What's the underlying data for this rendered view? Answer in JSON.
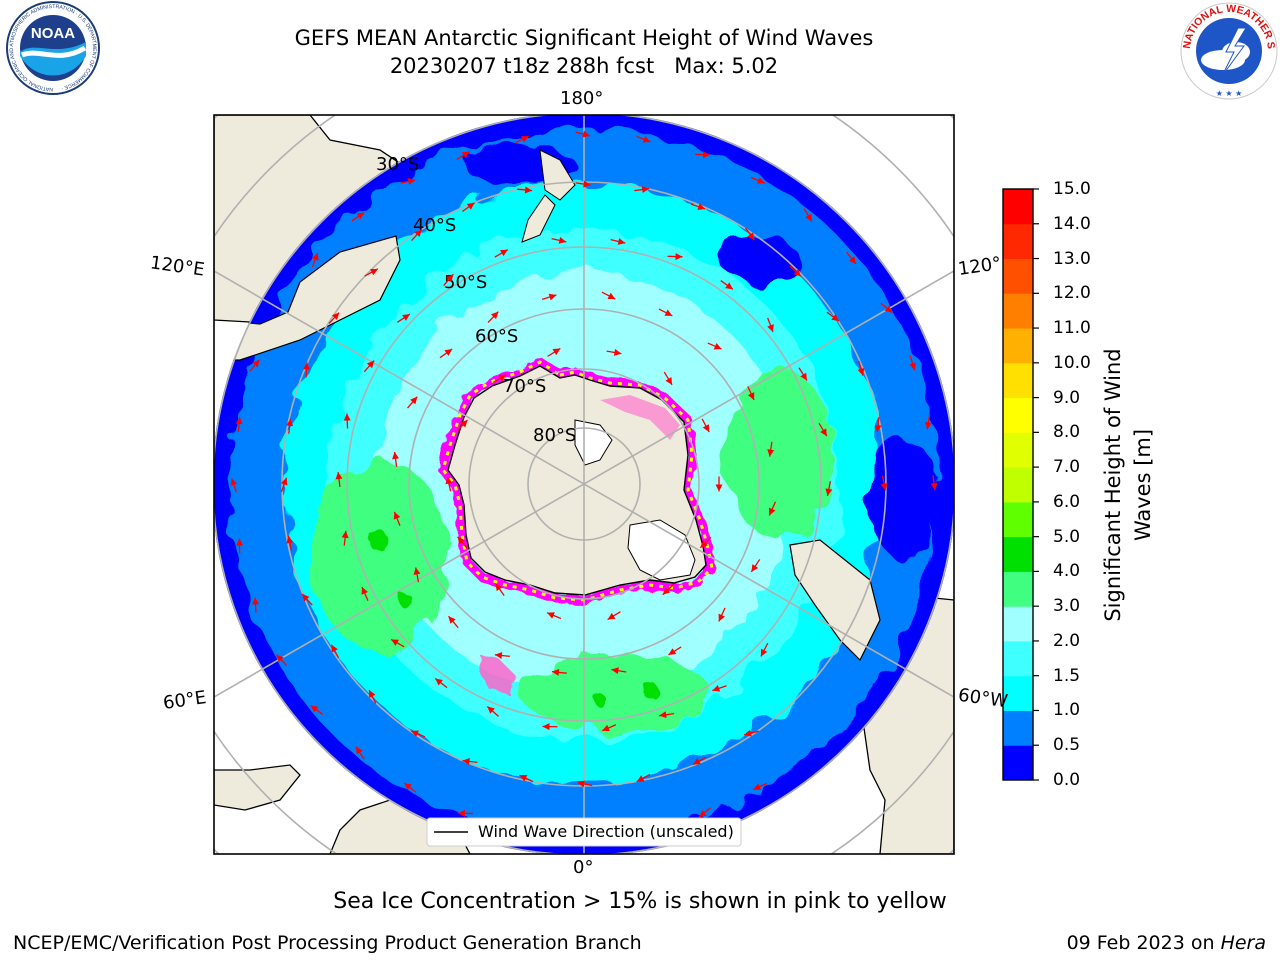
{
  "header": {
    "title": "GEFS MEAN Antarctic Significant Height of Wind Waves",
    "subtitle": "20230207 t18z 288h fcst   Max: 5.02"
  },
  "logos": {
    "noaa": {
      "text": "NOAA",
      "ring_text": "NATIONAL OCEANIC AND ATMOSPHERIC ADMINISTRATION · U.S. DEPARTMENT OF COMMERCE ·"
    },
    "nws": {
      "ring_text": "NATIONAL WEATHER SERVICE"
    }
  },
  "map": {
    "projection": "south-polar-stereographic",
    "longitude_labels": {
      "top": "180°",
      "bottom": "0°",
      "upper_left": "120°E",
      "upper_right": "120°",
      "lower_left": "60°E",
      "lower_right": "60°W"
    },
    "latitude_labels": [
      "30°S",
      "40°S",
      "50°S",
      "60°S",
      "70°S",
      "80°S"
    ],
    "legend": "Wind Wave Direction (unscaled)",
    "arrow_color": "#ff0000",
    "land_color": "#efebdc",
    "sea_ice_colors": [
      "#ff00ff",
      "#ff66cc",
      "#ffff00"
    ]
  },
  "colorbar": {
    "label": "Significant Height of Wind Waves [m]",
    "label_lines": [
      "Significant Height of Wind",
      "Waves [m]"
    ],
    "ticks": [
      "0.0",
      "0.5",
      "1.0",
      "1.5",
      "2.0",
      "3.0",
      "4.0",
      "5.0",
      "6.0",
      "7.0",
      "8.0",
      "9.0",
      "10.0",
      "11.0",
      "12.0",
      "13.0",
      "14.0",
      "15.0"
    ],
    "colors": [
      "#0000ff",
      "#0080ff",
      "#00ffff",
      "#40ffff",
      "#a0ffff",
      "#40ff80",
      "#00e000",
      "#60ff00",
      "#c0ff00",
      "#e0ff00",
      "#ffff00",
      "#ffe000",
      "#ffb000",
      "#ff8000",
      "#ff5000",
      "#ff2800",
      "#ff0000"
    ]
  },
  "caption": "Sea Ice Concentration > 15% is shown in pink to yellow",
  "footer": {
    "left": "NCEP/EMC/Verification Post Processing Product Generation Branch",
    "date": "09 Feb 2023 on ",
    "host": "Hera"
  }
}
